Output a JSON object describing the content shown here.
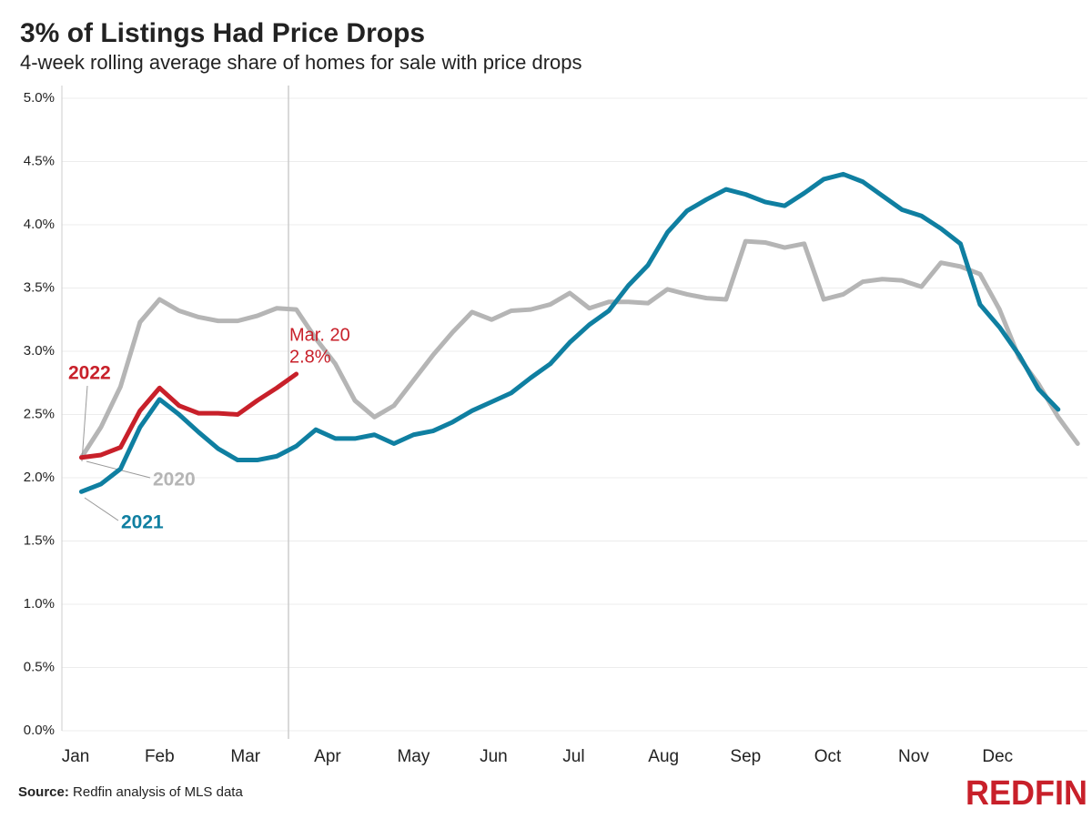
{
  "chart_data": {
    "type": "line",
    "title": "3% of Listings Had Price Drops",
    "subtitle": "4-week rolling average share of homes for sale with price drops",
    "source_label": "Source:",
    "source": "Redfin analysis of MLS data",
    "logo": "REDFIN",
    "xlim": [
      0,
      52.5
    ],
    "xticks": [
      {
        "value": 0.7,
        "label": "Jan"
      },
      {
        "value": 5,
        "label": "Feb"
      },
      {
        "value": 9.4,
        "label": "Mar"
      },
      {
        "value": 13.6,
        "label": "Apr"
      },
      {
        "value": 18,
        "label": "May"
      },
      {
        "value": 22.1,
        "label": "Jun"
      },
      {
        "value": 26.2,
        "label": "Jul"
      },
      {
        "value": 30.8,
        "label": "Aug"
      },
      {
        "value": 35,
        "label": "Sep"
      },
      {
        "value": 39.2,
        "label": "Oct"
      },
      {
        "value": 43.6,
        "label": "Nov"
      },
      {
        "value": 47.9,
        "label": "Dec"
      }
    ],
    "ylim": [
      0,
      5
    ],
    "yticks": [
      {
        "value": 0,
        "label": "0.0%"
      },
      {
        "value": 0.5,
        "label": "0.5%"
      },
      {
        "value": 1,
        "label": "1.0%"
      },
      {
        "value": 1.5,
        "label": "1.5%"
      },
      {
        "value": 2,
        "label": "2.0%"
      },
      {
        "value": 2.5,
        "label": "2.5%"
      },
      {
        "value": 3,
        "label": "3.0%"
      },
      {
        "value": 3.5,
        "label": "3.5%"
      },
      {
        "value": 4,
        "label": "4.0%"
      },
      {
        "value": 4.5,
        "label": "4.5%"
      },
      {
        "value": 5,
        "label": "5.0%"
      }
    ],
    "grid": true,
    "reference_line": {
      "x": 11.6,
      "label": "Mar. 20"
    },
    "x": [
      1,
      2,
      3,
      4,
      5,
      6,
      7,
      8,
      9,
      10,
      11,
      12,
      13,
      14,
      15,
      16,
      17,
      18,
      19,
      20,
      21,
      22,
      23,
      24,
      25,
      26,
      27,
      28,
      29,
      30,
      31,
      32,
      33,
      34,
      35,
      36,
      37,
      38,
      39,
      40,
      41,
      42,
      43,
      44,
      45,
      46,
      47,
      48,
      49,
      50,
      51,
      52
    ],
    "series": [
      {
        "name": "2020",
        "color": "#b5b5b5",
        "values": [
          2.16,
          2.4,
          2.72,
          3.23,
          3.41,
          3.32,
          3.27,
          3.24,
          3.24,
          3.28,
          3.34,
          3.33,
          3.1,
          2.9,
          2.61,
          2.48,
          2.57,
          2.77,
          2.97,
          3.15,
          3.31,
          3.25,
          3.32,
          3.33,
          3.37,
          3.46,
          3.34,
          3.39,
          3.39,
          3.38,
          3.49,
          3.45,
          3.42,
          3.41,
          3.87,
          3.86,
          3.82,
          3.85,
          3.41,
          3.45,
          3.55,
          3.57,
          3.56,
          3.51,
          3.7,
          3.67,
          3.61,
          3.33,
          2.95,
          2.74,
          2.48,
          2.27
        ]
      },
      {
        "name": "2021",
        "color": "#0f7fa1",
        "values": [
          1.89,
          1.95,
          2.07,
          2.4,
          2.62,
          2.5,
          2.36,
          2.23,
          2.14,
          2.14,
          2.17,
          2.25,
          2.38,
          2.31,
          2.31,
          2.34,
          2.27,
          2.34,
          2.37,
          2.44,
          2.53,
          2.6,
          2.67,
          2.79,
          2.9,
          3.07,
          3.21,
          3.32,
          3.52,
          3.68,
          3.94,
          4.11,
          4.2,
          4.28,
          4.24,
          4.18,
          4.15,
          4.25,
          4.36,
          4.4,
          4.34,
          4.23,
          4.12,
          4.07,
          3.97,
          3.85,
          3.37,
          3.19,
          2.97,
          2.7,
          2.54,
          null
        ]
      },
      {
        "name": "2022",
        "color": "#c8202a",
        "values": [
          2.16,
          2.18,
          2.24,
          2.53,
          2.71,
          2.57,
          2.51,
          2.51,
          2.5,
          2.61,
          2.71,
          2.82,
          null,
          null,
          null,
          null,
          null,
          null,
          null,
          null,
          null,
          null,
          null,
          null,
          null,
          null,
          null,
          null,
          null,
          null,
          null,
          null,
          null,
          null,
          null,
          null,
          null,
          null,
          null,
          null,
          null,
          null,
          null,
          null,
          null,
          null,
          null,
          null,
          null,
          null,
          null,
          null
        ],
        "value_labels": [
          null,
          null,
          null,
          null,
          null,
          null,
          null,
          null,
          null,
          null,
          null,
          "2.8%",
          null,
          null,
          null,
          null,
          null,
          null,
          null,
          null,
          null,
          null,
          null,
          null,
          null,
          null,
          null,
          null,
          null,
          null,
          null,
          null,
          null,
          null,
          null,
          null,
          null,
          null,
          null,
          null,
          null,
          null,
          null,
          null,
          null,
          null,
          null,
          null,
          null,
          null,
          null,
          null
        ]
      }
    ]
  }
}
